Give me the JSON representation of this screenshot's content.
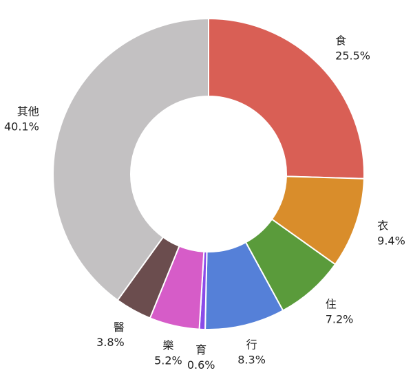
{
  "chart_data": {
    "type": "pie",
    "donut": true,
    "categories": [
      "食",
      "衣",
      "住",
      "行",
      "育",
      "樂",
      "醫",
      "其他"
    ],
    "values": [
      25.5,
      9.4,
      7.2,
      8.3,
      0.6,
      5.2,
      3.8,
      40.1
    ],
    "value_labels": [
      "25.5%",
      "9.4%",
      "7.2%",
      "8.3%",
      "0.6%",
      "5.2%",
      "3.8%",
      "40.1%"
    ],
    "colors": [
      "#d95f55",
      "#d98d2b",
      "#5a9b3b",
      "#5580d8",
      "#8a4be8",
      "#d65cc8",
      "#6b4d4e",
      "#c3c1c2"
    ],
    "start_angle": "12 o'clock",
    "direction": "clockwise"
  }
}
